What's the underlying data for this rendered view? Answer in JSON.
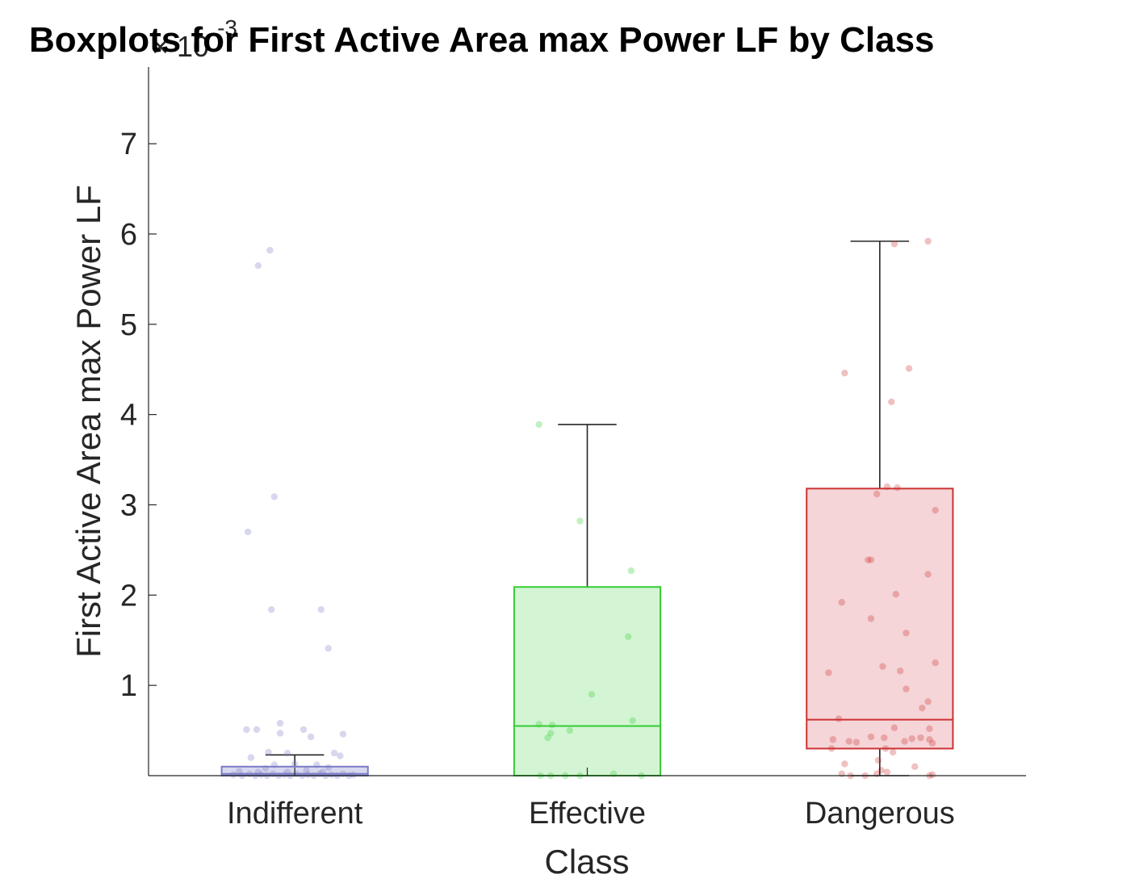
{
  "chart_data": {
    "type": "boxplot",
    "title": "Boxplots for First Active Area max Power LF by Class",
    "xlabel": "Class",
    "ylabel": "First Active Area max Power LF",
    "y_exponent_label": "× 10",
    "y_exponent_power": "-3",
    "ylim": [
      0,
      7.85
    ],
    "yticks": [
      1,
      2,
      3,
      4,
      5,
      6,
      7
    ],
    "categories": [
      "Indifferent",
      "Effective",
      "Dangerous"
    ],
    "groups": [
      {
        "name": "Indifferent",
        "color": "#7b7bc8",
        "fill": "#d8d8ee",
        "q1": 0.0,
        "median": 0.02,
        "q3": 0.1,
        "whisker_low": 0.0,
        "whisker_high": 0.23,
        "points": [
          {
            "dx": -0.17,
            "y": 5.82
          },
          {
            "dx": -0.25,
            "y": 5.65
          },
          {
            "dx": -0.14,
            "y": 3.09
          },
          {
            "dx": -0.32,
            "y": 2.7
          },
          {
            "dx": -0.16,
            "y": 1.84
          },
          {
            "dx": 0.18,
            "y": 1.84
          },
          {
            "dx": 0.23,
            "y": 1.41
          },
          {
            "dx": -0.33,
            "y": 0.51
          },
          {
            "dx": -0.26,
            "y": 0.51
          },
          {
            "dx": -0.1,
            "y": 0.58
          },
          {
            "dx": 0.06,
            "y": 0.51
          },
          {
            "dx": 0.33,
            "y": 0.46
          },
          {
            "dx": -0.1,
            "y": 0.47
          },
          {
            "dx": 0.11,
            "y": 0.43
          },
          {
            "dx": -0.3,
            "y": 0.2
          },
          {
            "dx": -0.18,
            "y": 0.26
          },
          {
            "dx": -0.05,
            "y": 0.25
          },
          {
            "dx": 0.27,
            "y": 0.25
          },
          {
            "dx": 0.31,
            "y": 0.22
          },
          {
            "dx": -0.14,
            "y": 0.12
          },
          {
            "dx": 0.0,
            "y": 0.13
          },
          {
            "dx": 0.15,
            "y": 0.12
          },
          {
            "dx": -0.38,
            "y": 0.05
          },
          {
            "dx": -0.2,
            "y": 0.08
          },
          {
            "dx": 0.08,
            "y": 0.06
          },
          {
            "dx": 0.23,
            "y": 0.09
          },
          {
            "dx": -0.42,
            "y": 0.01
          },
          {
            "dx": -0.36,
            "y": 0.0
          },
          {
            "dx": -0.31,
            "y": 0.02
          },
          {
            "dx": -0.27,
            "y": 0.0
          },
          {
            "dx": -0.23,
            "y": 0.01
          },
          {
            "dx": -0.19,
            "y": 0.0
          },
          {
            "dx": -0.15,
            "y": 0.02
          },
          {
            "dx": -0.11,
            "y": 0.0
          },
          {
            "dx": -0.07,
            "y": 0.01
          },
          {
            "dx": -0.03,
            "y": 0.0
          },
          {
            "dx": 0.01,
            "y": 0.02
          },
          {
            "dx": 0.05,
            "y": 0.0
          },
          {
            "dx": 0.09,
            "y": 0.01
          },
          {
            "dx": 0.13,
            "y": 0.0
          },
          {
            "dx": 0.17,
            "y": 0.02
          },
          {
            "dx": 0.21,
            "y": 0.0
          },
          {
            "dx": 0.25,
            "y": 0.01
          },
          {
            "dx": 0.29,
            "y": 0.0
          },
          {
            "dx": 0.33,
            "y": 0.02
          },
          {
            "dx": 0.37,
            "y": 0.0
          },
          {
            "dx": 0.4,
            "y": 0.01
          },
          {
            "dx": -0.05,
            "y": 0.04
          },
          {
            "dx": 0.19,
            "y": 0.04
          },
          {
            "dx": -0.25,
            "y": 0.04
          }
        ]
      },
      {
        "name": "Effective",
        "color": "#33cc33",
        "fill": "#d4f5d4",
        "q1": 0.0,
        "median": 0.55,
        "q3": 2.09,
        "whisker_low": 0.0,
        "whisker_high": 3.89,
        "points": [
          {
            "dx": -0.33,
            "y": 3.89
          },
          {
            "dx": -0.05,
            "y": 2.82
          },
          {
            "dx": 0.3,
            "y": 2.27
          },
          {
            "dx": 0.28,
            "y": 1.54
          },
          {
            "dx": 0.03,
            "y": 0.9
          },
          {
            "dx": 0.31,
            "y": 0.61
          },
          {
            "dx": -0.33,
            "y": 0.57
          },
          {
            "dx": -0.24,
            "y": 0.56
          },
          {
            "dx": -0.12,
            "y": 0.5
          },
          {
            "dx": -0.25,
            "y": 0.47
          },
          {
            "dx": -0.27,
            "y": 0.42
          },
          {
            "dx": -0.32,
            "y": 0.0
          },
          {
            "dx": -0.25,
            "y": 0.0
          },
          {
            "dx": -0.15,
            "y": 0.0
          },
          {
            "dx": -0.05,
            "y": 0.0
          },
          {
            "dx": 0.18,
            "y": 0.02
          },
          {
            "dx": 0.37,
            "y": 0.0
          }
        ]
      },
      {
        "name": "Dangerous",
        "color": "#cc3333",
        "fill": "#f5d5d7",
        "q1": 0.3,
        "median": 0.62,
        "q3": 3.18,
        "whisker_low": 0.0,
        "whisker_high": 5.92,
        "points": [
          {
            "dx": 0.1,
            "y": 5.89
          },
          {
            "dx": 0.33,
            "y": 5.92
          },
          {
            "dx": -0.24,
            "y": 4.46
          },
          {
            "dx": 0.2,
            "y": 4.51
          },
          {
            "dx": 0.08,
            "y": 4.14
          },
          {
            "dx": 0.05,
            "y": 3.2
          },
          {
            "dx": 0.12,
            "y": 3.19
          },
          {
            "dx": -0.02,
            "y": 3.12
          },
          {
            "dx": 0.38,
            "y": 2.94
          },
          {
            "dx": -0.08,
            "y": 2.39
          },
          {
            "dx": -0.06,
            "y": 2.39
          },
          {
            "dx": 0.33,
            "y": 2.23
          },
          {
            "dx": 0.11,
            "y": 2.01
          },
          {
            "dx": -0.26,
            "y": 1.92
          },
          {
            "dx": -0.06,
            "y": 1.74
          },
          {
            "dx": 0.18,
            "y": 1.58
          },
          {
            "dx": 0.38,
            "y": 1.25
          },
          {
            "dx": 0.02,
            "y": 1.21
          },
          {
            "dx": 0.14,
            "y": 1.16
          },
          {
            "dx": -0.35,
            "y": 1.14
          },
          {
            "dx": 0.18,
            "y": 0.96
          },
          {
            "dx": 0.33,
            "y": 0.82
          },
          {
            "dx": 0.29,
            "y": 0.75
          },
          {
            "dx": -0.28,
            "y": 0.63
          },
          {
            "dx": -0.32,
            "y": 0.4
          },
          {
            "dx": -0.21,
            "y": 0.38
          },
          {
            "dx": -0.16,
            "y": 0.37
          },
          {
            "dx": -0.06,
            "y": 0.43
          },
          {
            "dx": 0.1,
            "y": 0.53
          },
          {
            "dx": 0.34,
            "y": 0.52
          },
          {
            "dx": 0.03,
            "y": 0.42
          },
          {
            "dx": 0.17,
            "y": 0.38
          },
          {
            "dx": 0.22,
            "y": 0.41
          },
          {
            "dx": 0.28,
            "y": 0.42
          },
          {
            "dx": 0.34,
            "y": 0.4
          },
          {
            "dx": -0.33,
            "y": 0.3
          },
          {
            "dx": 0.04,
            "y": 0.3
          },
          {
            "dx": 0.09,
            "y": 0.26
          },
          {
            "dx": 0.36,
            "y": 0.36
          },
          {
            "dx": -0.24,
            "y": 0.13
          },
          {
            "dx": -0.01,
            "y": 0.17
          },
          {
            "dx": 0.01,
            "y": 0.06
          },
          {
            "dx": 0.24,
            "y": 0.1
          },
          {
            "dx": -0.26,
            "y": 0.02
          },
          {
            "dx": -0.2,
            "y": 0.0
          },
          {
            "dx": -0.1,
            "y": 0.0
          },
          {
            "dx": -0.02,
            "y": 0.02
          },
          {
            "dx": 0.05,
            "y": 0.04
          },
          {
            "dx": 0.34,
            "y": 0.0
          },
          {
            "dx": 0.36,
            "y": 0.01
          }
        ]
      }
    ]
  }
}
